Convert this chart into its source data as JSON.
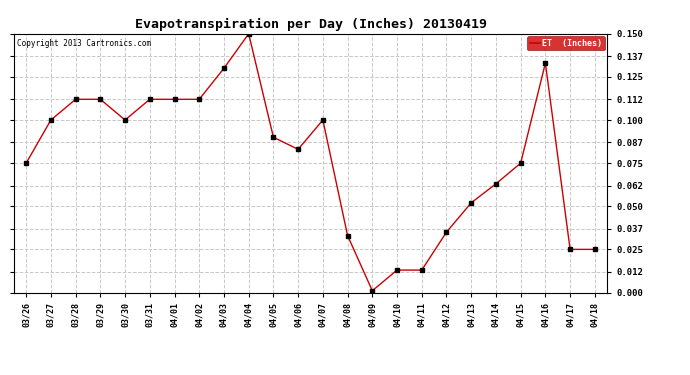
{
  "title": "Evapotranspiration per Day (Inches) 20130419",
  "copyright": "Copyright 2013 Cartronics.com",
  "legend_label": "ET  (Inches)",
  "legend_bg": "#cc0000",
  "legend_text_color": "#ffffff",
  "line_color": "#cc0000",
  "marker_color": "#000000",
  "bg_color": "#ffffff",
  "plot_bg_color": "#ffffff",
  "grid_color": "#c8c8c8",
  "dates": [
    "03/26",
    "03/27",
    "03/28",
    "03/29",
    "03/30",
    "03/31",
    "04/01",
    "04/02",
    "04/03",
    "04/04",
    "04/05",
    "04/06",
    "04/07",
    "04/08",
    "04/09",
    "04/10",
    "04/11",
    "04/12",
    "04/13",
    "04/14",
    "04/15",
    "04/16",
    "04/17",
    "04/18"
  ],
  "values": [
    0.075,
    0.1,
    0.112,
    0.112,
    0.1,
    0.112,
    0.112,
    0.112,
    0.13,
    0.15,
    0.09,
    0.083,
    0.1,
    0.033,
    0.001,
    0.013,
    0.013,
    0.035,
    0.052,
    0.063,
    0.075,
    0.133,
    0.025,
    0.025
  ],
  "ylim": [
    0.0,
    0.15
  ],
  "yticks": [
    0.0,
    0.012,
    0.025,
    0.037,
    0.05,
    0.062,
    0.075,
    0.087,
    0.1,
    0.112,
    0.125,
    0.137,
    0.15
  ]
}
